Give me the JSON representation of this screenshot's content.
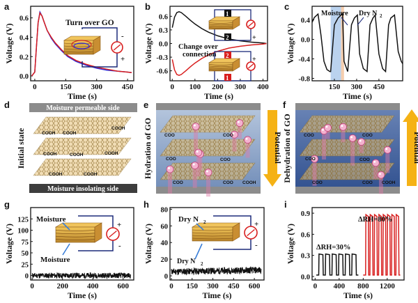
{
  "colors": {
    "black": "#111111",
    "blue": "#2a2ad8",
    "red": "#d81e1e",
    "orange": "#f5b215",
    "navy": "#1b2a7a",
    "pink": "#e07aa8",
    "gold": "#c9a24a",
    "gray": "#8a8a8a"
  },
  "panels": {
    "a": {
      "letter": "a",
      "inset_text": "Turn over GO"
    },
    "b": {
      "letter": "b",
      "annotation": [
        "Change over",
        "connection"
      ],
      "badges": [
        "1",
        "2",
        "2",
        "1"
      ]
    },
    "c": {
      "letter": "c",
      "band_moisture": "Moisture",
      "band_dry": "Dry N",
      "band_dry_sub": "2"
    },
    "d": {
      "letter": "d",
      "top_band": "Moisture permeable side",
      "bottom_band": "Moisture insolating side",
      "side_label": "Initial state",
      "tags": [
        "COOH",
        "COOH",
        "COOH",
        "COOH",
        "COOH",
        "COOH",
        "COOH",
        "COOH"
      ]
    },
    "e": {
      "letter": "e",
      "side_label": "Hydration of GO",
      "arrow_label": "Potential",
      "tags": [
        "COO",
        "COO",
        "COO",
        "COO",
        "COO",
        "COO",
        "COOH"
      ]
    },
    "f": {
      "letter": "f",
      "side_label": "Dehydration of GO",
      "arrow_label": "Potential",
      "tags": [
        "COO",
        "COO",
        "COO",
        "COO",
        "COO",
        "COO",
        "COOH"
      ]
    },
    "g": {
      "letter": "g",
      "inset_top": "Moisture",
      "inset_bottom": "Moisture"
    },
    "h": {
      "letter": "h",
      "inset_top": "Dry N",
      "inset_bottom": "Dry N",
      "sub": "2"
    },
    "i": {
      "letter": "i",
      "ann1": "ΔRH=30%",
      "ann2": "ΔRH=80%"
    }
  },
  "chart_data": [
    {
      "id": "a",
      "type": "line",
      "xlabel": "Time (s)",
      "ylabel": "Voltage (V)",
      "xlim": [
        -20,
        480
      ],
      "ylim": [
        -0.05,
        0.72
      ],
      "xticks": [
        0,
        150,
        300,
        450
      ],
      "yticks": [
        0.0,
        0.2,
        0.4,
        0.6
      ],
      "series": [
        {
          "color": "#2a2ad8",
          "x": [
            -15,
            0,
            8,
            16,
            25,
            35,
            45,
            60,
            80,
            100,
            130,
            160,
            200,
            250,
            300,
            350,
            400,
            450,
            470
          ],
          "y": [
            0.0,
            0.04,
            0.3,
            0.55,
            0.66,
            0.62,
            0.56,
            0.47,
            0.39,
            0.33,
            0.26,
            0.2,
            0.15,
            0.11,
            0.08,
            0.06,
            0.05,
            0.04,
            0.035
          ]
        },
        {
          "color": "#d81e1e",
          "x": [
            -15,
            0,
            8,
            16,
            25,
            35,
            45,
            60,
            80,
            100,
            130,
            160,
            200,
            250,
            300,
            350,
            400,
            450,
            470
          ],
          "y": [
            0.0,
            0.04,
            0.3,
            0.55,
            0.65,
            0.62,
            0.56,
            0.47,
            0.4,
            0.34,
            0.27,
            0.21,
            0.16,
            0.12,
            0.09,
            0.07,
            0.05,
            0.04,
            0.035
          ]
        }
      ]
    },
    {
      "id": "b",
      "type": "line",
      "xlabel": "Time (s)",
      "ylabel": "Voltage (V)",
      "xlim": [
        -10,
        420
      ],
      "ylim": [
        -0.82,
        0.82
      ],
      "xticks": [
        0,
        100,
        200,
        300,
        400
      ],
      "yticks": [
        -0.6,
        -0.3,
        0.0,
        0.3,
        0.6
      ],
      "series": [
        {
          "color": "#111111",
          "x": [
            0,
            10,
            20,
            30,
            40,
            60,
            80,
            100,
            130,
            160,
            200,
            250,
            300,
            350,
            400,
            415
          ],
          "y": [
            0.35,
            0.58,
            0.68,
            0.7,
            0.68,
            0.6,
            0.51,
            0.43,
            0.33,
            0.25,
            0.17,
            0.1,
            0.06,
            0.03,
            0.01,
            0.0
          ]
        },
        {
          "color": "#d81e1e",
          "x": [
            0,
            10,
            20,
            30,
            40,
            60,
            80,
            100,
            130,
            160,
            200,
            250,
            300,
            350,
            400,
            415
          ],
          "y": [
            -0.35,
            -0.58,
            -0.68,
            -0.7,
            -0.68,
            -0.6,
            -0.51,
            -0.43,
            -0.33,
            -0.25,
            -0.17,
            -0.1,
            -0.06,
            -0.03,
            -0.01,
            0.0
          ]
        }
      ]
    },
    {
      "id": "c",
      "type": "line",
      "xlabel": "Time (s)",
      "ylabel": "Voltage (V)",
      "xlim": [
        0,
        610
      ],
      "ylim": [
        -0.85,
        0.68
      ],
      "xticks": [
        150,
        300,
        450
      ],
      "yticks": [
        -0.8,
        -0.4,
        0.0,
        0.4
      ],
      "bands": [
        {
          "from": 125,
          "to": 195,
          "color": "#a9c7ea"
        },
        {
          "from": 195,
          "to": 215,
          "color": "#f3c29a"
        }
      ],
      "series": [
        {
          "color": "#111111",
          "x": [
            0,
            15,
            40,
            60,
            80,
            100,
            120,
            125,
            150,
            175,
            195,
            205,
            215,
            240,
            265,
            285,
            305,
            320,
            345,
            370,
            390,
            410,
            425,
            450,
            475,
            495,
            515,
            530,
            555,
            580,
            600,
            610
          ],
          "y": [
            0.35,
            0.45,
            0.52,
            0.08,
            -0.45,
            -0.62,
            -0.66,
            -0.66,
            0.3,
            0.44,
            0.5,
            0.53,
            -0.45,
            -0.66,
            0.3,
            0.44,
            0.5,
            -0.3,
            -0.6,
            -0.66,
            0.3,
            0.44,
            0.5,
            -0.3,
            -0.6,
            -0.66,
            0.3,
            0.44,
            0.5,
            -0.25,
            -0.45,
            -0.5
          ]
        }
      ]
    },
    {
      "id": "g",
      "type": "line",
      "xlabel": "Time (s)",
      "ylabel": "Voltage (V)",
      "xlim": [
        -10,
        670
      ],
      "ylim": [
        -10,
        150
      ],
      "xticks": [
        0,
        200,
        400,
        600
      ],
      "yticks": [
        0,
        25,
        50,
        75,
        100,
        125
      ],
      "series": [
        {
          "color": "#111111",
          "noise": "flat",
          "mean": 0,
          "amp": 6
        }
      ]
    },
    {
      "id": "h",
      "type": "line",
      "xlabel": "Time (s)",
      "ylabel": "Voltage (V)",
      "xlim": [
        -10,
        670
      ],
      "ylim": [
        -5,
        82
      ],
      "xticks": [
        0,
        150,
        300,
        450,
        600
      ],
      "yticks": [
        0,
        20,
        40,
        60,
        80
      ],
      "series": [
        {
          "color": "#111111",
          "noise": "rising",
          "mean": 5,
          "amp": 4
        }
      ]
    },
    {
      "id": "i",
      "type": "line",
      "xlabel": "Time (s)",
      "ylabel": "Voltage (V)",
      "xlim": [
        -50,
        1480
      ],
      "ylim": [
        -0.05,
        0.98
      ],
      "xticks": [
        0,
        400,
        800,
        1200
      ],
      "yticks": [
        0.0,
        0.3,
        0.6,
        0.9
      ],
      "series": [
        {
          "color": "#111111",
          "name": "ΔRH=30%",
          "pulses": {
            "start": 60,
            "period": 110,
            "count": 6,
            "width": 70,
            "high": 0.32
          }
        },
        {
          "color": "#d81e1e",
          "name": "ΔRH=80%",
          "pulses": {
            "start": 840,
            "period": 72,
            "count": 8,
            "width": 45,
            "high": 0.88
          }
        }
      ]
    }
  ]
}
